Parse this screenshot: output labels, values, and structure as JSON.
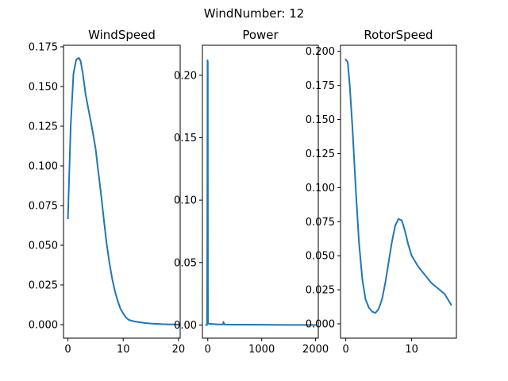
{
  "chart_data": {
    "suptitle": "WindNumber: 12",
    "line_color": "#1f77b4",
    "grid": false,
    "subplots": [
      {
        "type": "line",
        "title": "WindSpeed",
        "xlim": [
          -0.8,
          20.3
        ],
        "ylim": [
          -0.0085,
          0.176
        ],
        "xticks": [
          0,
          10,
          20
        ],
        "xtick_labels": [
          "0",
          "10",
          "20"
        ],
        "yticks": [
          0,
          0.025,
          0.05,
          0.075,
          0.1,
          0.125,
          0.15,
          0.175
        ],
        "ytick_labels": [
          "0.000",
          "0.025",
          "0.050",
          "0.075",
          "0.100",
          "0.125",
          "0.150",
          "0.175"
        ],
        "series": [
          {
            "x": [
              0,
              0.5,
              1,
              1.5,
              2,
              2.3,
              2.7,
              3.2,
              3.8,
              4.3,
              5,
              5.5,
              6,
              6.5,
              7,
              7.5,
              8,
              8.5,
              9,
              9.5,
              10,
              10.5,
              11,
              11.5,
              12,
              13,
              14,
              15,
              16,
              17,
              18,
              19,
              20
            ],
            "y": [
              0.067,
              0.125,
              0.158,
              0.167,
              0.168,
              0.166,
              0.158,
              0.145,
              0.134,
              0.125,
              0.111,
              0.096,
              0.082,
              0.066,
              0.051,
              0.039,
              0.029,
              0.021,
              0.015,
              0.01,
              0.007,
              0.0045,
              0.003,
              0.0025,
              0.002,
              0.0015,
              0.001,
              0.0007,
              0.0005,
              0.0003,
              0.0002,
              0.0001,
              0
            ]
          }
        ]
      },
      {
        "type": "line",
        "title": "Power",
        "xlim": [
          -100,
          2050
        ],
        "ylim": [
          -0.0105,
          0.224
        ],
        "xticks": [
          0,
          1000,
          2000
        ],
        "xtick_labels": [
          "0",
          "1000",
          "2000"
        ],
        "yticks": [
          0,
          0.05,
          0.1,
          0.15,
          0.2
        ],
        "ytick_labels": [
          "0.00",
          "0.05",
          "0.10",
          "0.15",
          "0.20"
        ],
        "series": [
          {
            "x": [
              -30,
              -15,
              -10,
              -5,
              0,
              3,
              5,
              8,
              10,
              30,
              100,
              200,
              280,
              290,
              300,
              310,
              320,
              500,
              1000,
              1500,
              2000
            ],
            "y": [
              0,
              0,
              0.06,
              0.212,
              0.21,
              0.02,
              0.002,
              0.001,
              0.001,
              0.001,
              0.0008,
              0.0005,
              0.0005,
              0.0025,
              0.0005,
              0.001,
              0.0004,
              0.0003,
              0.0002,
              0.0001,
              0
            ]
          }
        ]
      },
      {
        "type": "line",
        "title": "RotorSpeed",
        "xlim": [
          -0.8,
          16.8
        ],
        "ylim": [
          -0.0105,
          0.2045
        ],
        "xticks": [
          0,
          10
        ],
        "xtick_labels": [
          "0",
          "10"
        ],
        "yticks": [
          0,
          0.025,
          0.05,
          0.075,
          0.1,
          0.125,
          0.15,
          0.175,
          0.2
        ],
        "ytick_labels": [
          "0.000",
          "0.025",
          "0.050",
          "0.075",
          "0.100",
          "0.125",
          "0.150",
          "0.175",
          "0.200"
        ],
        "series": [
          {
            "x": [
              0,
              0.3,
              0.6,
              1,
              1.5,
              2,
              2.5,
              3,
              3.5,
              4,
              4.5,
              5,
              5.5,
              6,
              6.5,
              7,
              7.5,
              8,
              8.5,
              9,
              9.5,
              10,
              11,
              12,
              13,
              14,
              15,
              16
            ],
            "y": [
              0.194,
              0.192,
              0.175,
              0.145,
              0.1,
              0.06,
              0.033,
              0.018,
              0.012,
              0.009,
              0.008,
              0.011,
              0.018,
              0.03,
              0.045,
              0.06,
              0.072,
              0.077,
              0.076,
              0.068,
              0.058,
              0.05,
              0.042,
              0.036,
              0.03,
              0.026,
              0.022,
              0.014
            ]
          }
        ]
      }
    ]
  }
}
